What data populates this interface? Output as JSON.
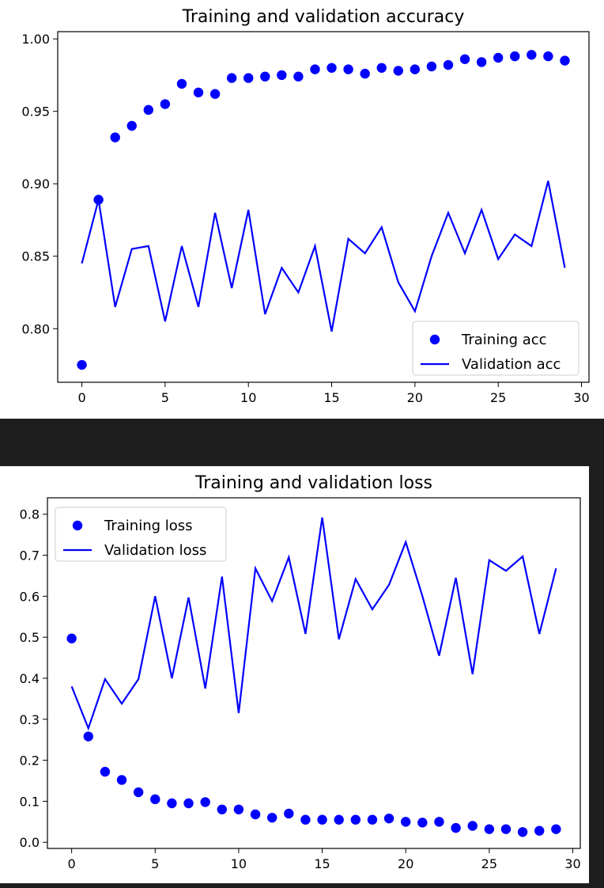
{
  "chart_data": [
    {
      "type": "line",
      "title": "Training and validation accuracy",
      "xlabel": "",
      "ylabel": "",
      "xlim": [
        -1.45,
        30.45
      ],
      "ylim": [
        0.763,
        1.005
      ],
      "xticks": [
        0,
        5,
        10,
        15,
        20,
        25,
        30
      ],
      "yticks": [
        0.8,
        0.85,
        0.9,
        0.95,
        1.0
      ],
      "ytick_labels": [
        "0.80",
        "0.85",
        "0.90",
        "0.95",
        "1.00"
      ],
      "legend": "lower-right",
      "grid": false,
      "x": [
        0,
        1,
        2,
        3,
        4,
        5,
        6,
        7,
        8,
        9,
        10,
        11,
        12,
        13,
        14,
        15,
        16,
        17,
        18,
        19,
        20,
        21,
        22,
        23,
        24,
        25,
        26,
        27,
        28,
        29
      ],
      "series": [
        {
          "name": "Training acc",
          "style": "dots",
          "color": "#0000ff",
          "values": [
            0.775,
            0.889,
            0.932,
            0.94,
            0.951,
            0.955,
            0.969,
            0.963,
            0.962,
            0.973,
            0.973,
            0.974,
            0.975,
            0.974,
            0.979,
            0.98,
            0.979,
            0.976,
            0.98,
            0.978,
            0.979,
            0.981,
            0.982,
            0.986,
            0.984,
            0.987,
            0.988,
            0.989,
            0.988,
            0.985
          ]
        },
        {
          "name": "Validation acc",
          "style": "line",
          "color": "#0000ff",
          "values": [
            0.845,
            0.889,
            0.815,
            0.855,
            0.857,
            0.805,
            0.857,
            0.815,
            0.88,
            0.828,
            0.882,
            0.81,
            0.842,
            0.825,
            0.857,
            0.798,
            0.862,
            0.852,
            0.87,
            0.832,
            0.812,
            0.85,
            0.88,
            0.852,
            0.882,
            0.848,
            0.865,
            0.857,
            0.902,
            0.842
          ]
        }
      ]
    },
    {
      "type": "line",
      "title": "Training and validation loss",
      "xlabel": "",
      "ylabel": "",
      "xlim": [
        -1.45,
        30.45
      ],
      "ylim": [
        -0.015,
        0.84
      ],
      "xticks": [
        0,
        5,
        10,
        15,
        20,
        25,
        30
      ],
      "yticks": [
        0.0,
        0.1,
        0.2,
        0.3,
        0.4,
        0.5,
        0.6,
        0.7,
        0.8
      ],
      "ytick_labels": [
        "0.0",
        "0.1",
        "0.2",
        "0.3",
        "0.4",
        "0.5",
        "0.6",
        "0.7",
        "0.8"
      ],
      "legend": "upper-left",
      "grid": false,
      "x": [
        0,
        1,
        2,
        3,
        4,
        5,
        6,
        7,
        8,
        9,
        10,
        11,
        12,
        13,
        14,
        15,
        16,
        17,
        18,
        19,
        20,
        21,
        22,
        23,
        24,
        25,
        26,
        27,
        28,
        29
      ],
      "series": [
        {
          "name": "Training loss",
          "style": "dots",
          "color": "#0000ff",
          "values": [
            0.497,
            0.258,
            0.172,
            0.152,
            0.122,
            0.105,
            0.095,
            0.095,
            0.098,
            0.08,
            0.08,
            0.068,
            0.06,
            0.07,
            0.055,
            0.055,
            0.055,
            0.055,
            0.055,
            0.058,
            0.05,
            0.048,
            0.05,
            0.035,
            0.04,
            0.032,
            0.032,
            0.025,
            0.028,
            0.032
          ]
        },
        {
          "name": "Validation loss",
          "style": "line",
          "color": "#0000ff",
          "values": [
            0.38,
            0.278,
            0.398,
            0.338,
            0.398,
            0.6,
            0.4,
            0.597,
            0.375,
            0.648,
            0.315,
            0.668,
            0.588,
            0.695,
            0.508,
            0.792,
            0.495,
            0.642,
            0.568,
            0.628,
            0.732,
            0.6,
            0.455,
            0.645,
            0.41,
            0.688,
            0.662,
            0.697,
            0.508,
            0.668
          ]
        }
      ]
    }
  ]
}
